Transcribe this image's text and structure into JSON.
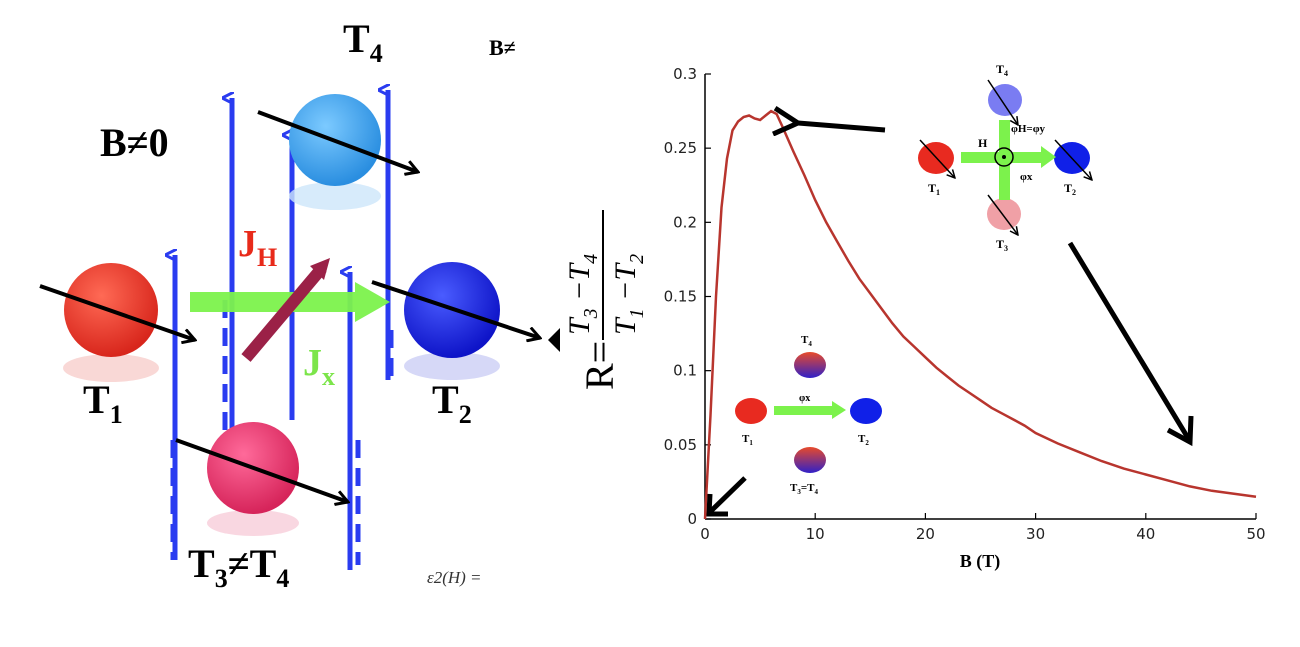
{
  "left_diagram": {
    "label_t4": "T4",
    "label_b_ne_corner": "B≠",
    "label_b_ne_0": "B≠0",
    "label_jh": "JH",
    "label_jx": "Jx",
    "label_t1": "T1",
    "label_t2": "T2",
    "label_t3_ne_t4": "T3≠T4",
    "caption_fragment": "ε2(H) =",
    "colors": {
      "t1": "#e8382a",
      "t2": "#1a25e6",
      "t3": "#e23a6e",
      "t4": "#3ba6ef",
      "current_arrow": "#2a3cf0",
      "jx_arrow": "#7cf24c",
      "jh_arrow": "#9b2147",
      "jh_text": "#e82a1a",
      "jx_text": "#7ce54a"
    }
  },
  "ratio_formula": {
    "lhs": "R=",
    "numerator": "T3−T4",
    "denominator": "T1−T2"
  },
  "inset_top": {
    "t4": "T4",
    "t1": "T1",
    "t2": "T2",
    "t3": "T3",
    "h": "H",
    "phi_h_eq_phi_y": "φH=φy",
    "phi_x": "φx"
  },
  "inset_bottom": {
    "t4": "T4",
    "t1": "T1",
    "t2": "T2",
    "t3_eq_t4": "T3=T4",
    "phi_x": "φx"
  },
  "chart_data": {
    "type": "line",
    "title": "",
    "xlabel": "B (T)",
    "ylabel": "R=(T3−T4)/(T1−T2)",
    "xlim": [
      0,
      50
    ],
    "ylim": [
      0,
      0.3
    ],
    "x_ticks": [
      0,
      10,
      20,
      30,
      40,
      50
    ],
    "y_ticks": [
      0,
      0.05,
      0.1,
      0.15,
      0.2,
      0.25,
      0.3
    ],
    "x_tick_labels": [
      "0",
      "10",
      "20",
      "30",
      "40",
      "50"
    ],
    "y_tick_labels": [
      "0",
      "0.05",
      "0.1",
      "0.15",
      "0.2",
      "0.25",
      "0.3"
    ],
    "grid": false,
    "line_color": "#b8352e",
    "series": [
      {
        "x": [
          0,
          0.5,
          1,
          1.5,
          2,
          2.5,
          3,
          3.5,
          4,
          4.5,
          5,
          5.5,
          6,
          6.5,
          7,
          8,
          9,
          10,
          11,
          12,
          13,
          14,
          15,
          16,
          17,
          18,
          19,
          20,
          21,
          22,
          23,
          24,
          25,
          26,
          27,
          28,
          29,
          30,
          32,
          34,
          36,
          38,
          40,
          42,
          44,
          46,
          48,
          50
        ],
        "y": [
          0,
          0.07,
          0.15,
          0.21,
          0.243,
          0.262,
          0.268,
          0.271,
          0.272,
          0.27,
          0.269,
          0.272,
          0.275,
          0.273,
          0.265,
          0.248,
          0.232,
          0.215,
          0.2,
          0.187,
          0.174,
          0.162,
          0.152,
          0.142,
          0.132,
          0.123,
          0.116,
          0.109,
          0.102,
          0.096,
          0.09,
          0.085,
          0.08,
          0.075,
          0.071,
          0.067,
          0.063,
          0.058,
          0.051,
          0.045,
          0.039,
          0.034,
          0.03,
          0.026,
          0.022,
          0.019,
          0.017,
          0.015
        ]
      }
    ]
  }
}
